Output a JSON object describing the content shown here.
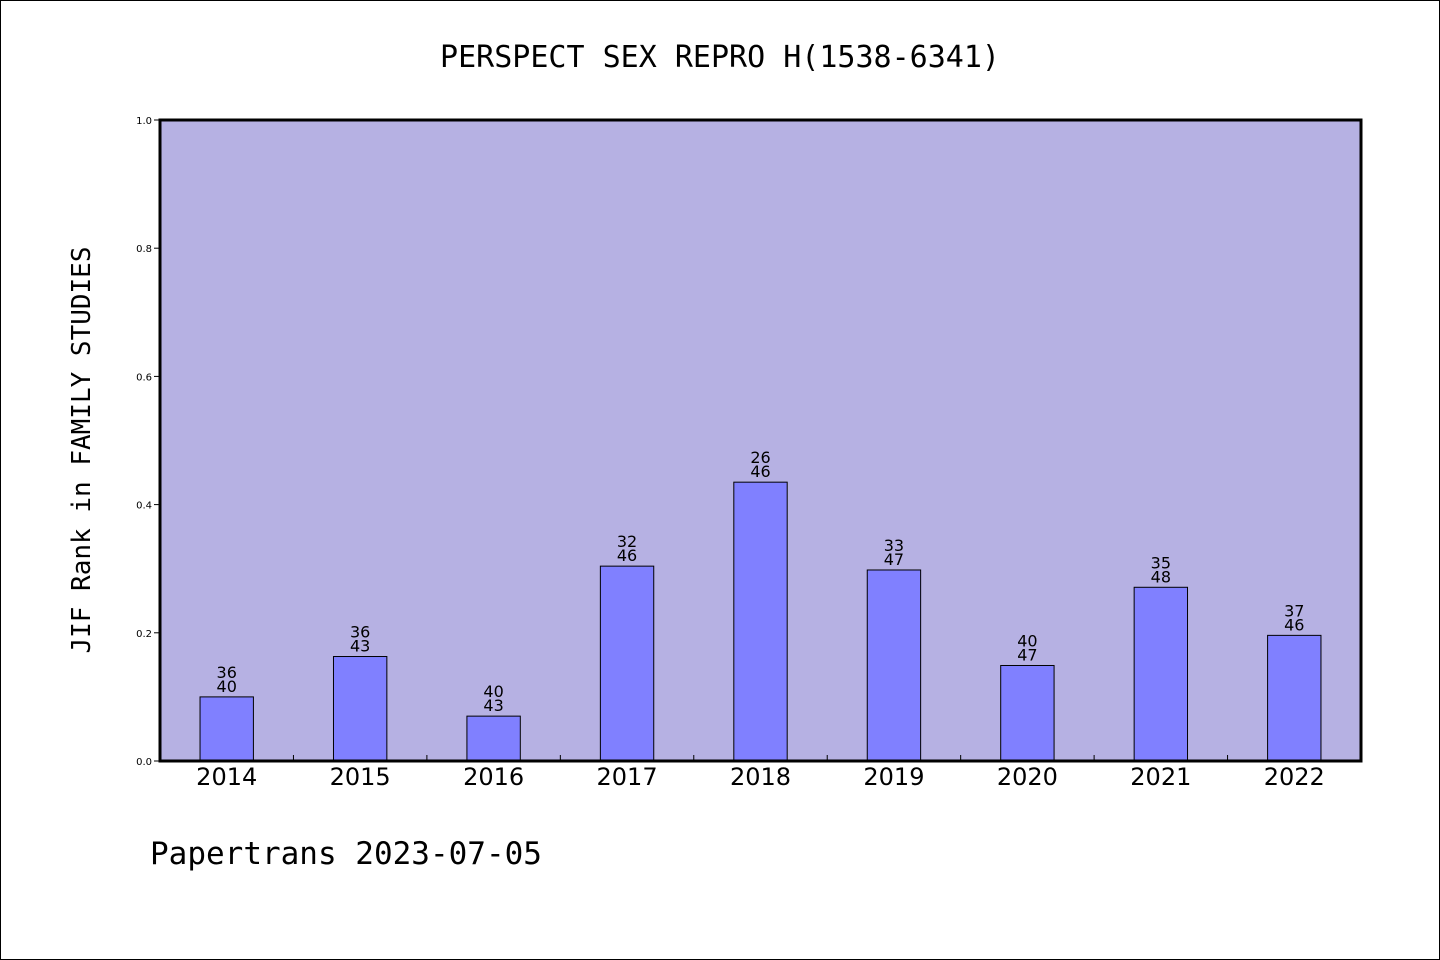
{
  "chart_data": {
    "type": "bar",
    "title": "PERSPECT SEX REPRO H(1538-6341)",
    "ylabel": "JIF Rank in FAMILY STUDIES",
    "xlabel": "",
    "ylim": [
      0,
      1.0
    ],
    "yticks": [
      "0.0",
      "0.2",
      "0.4",
      "0.6",
      "0.8",
      "1.0"
    ],
    "categories": [
      "2014",
      "2015",
      "2016",
      "2017",
      "2018",
      "2019",
      "2020",
      "2021",
      "2022"
    ],
    "values": [
      0.1,
      0.163,
      0.07,
      0.304,
      0.435,
      0.298,
      0.149,
      0.271,
      0.196
    ],
    "rank": [
      "36",
      "36",
      "40",
      "32",
      "26",
      "33",
      "40",
      "35",
      "37"
    ],
    "total": [
      "40",
      "43",
      "43",
      "46",
      "46",
      "47",
      "47",
      "48",
      "46"
    ],
    "grid": false,
    "legend": "none"
  },
  "footer": "Papertrans 2023-07-05",
  "colors": {
    "plot_background": "#b6b1e3",
    "bar_fill": "#8080ff",
    "bar_stroke": "#000000",
    "axis": "#000000"
  }
}
